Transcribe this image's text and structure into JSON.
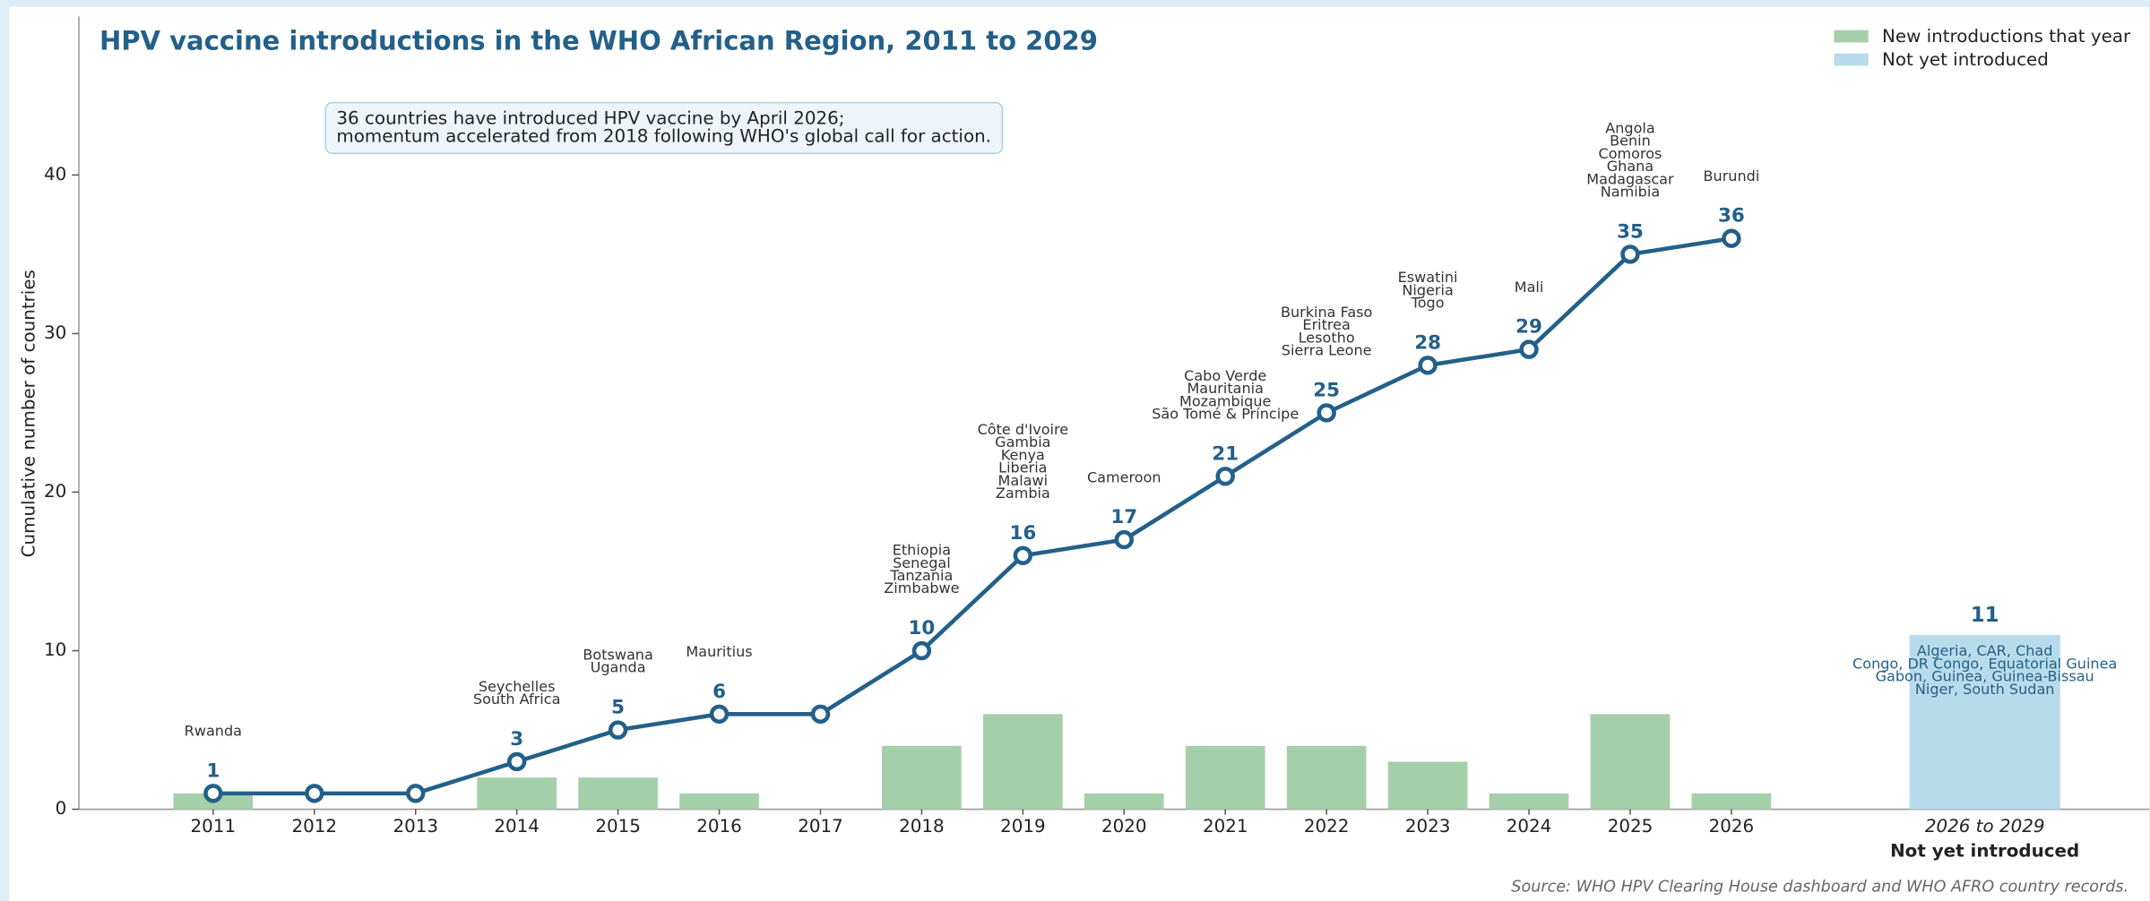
{
  "chart_data": {
    "type": "bar_line",
    "title": "HPV vaccine introductions in the WHO African Region, 2011 to 2029",
    "note": [
      "36 countries have introduced HPV vaccine by April 2026;",
      "momentum accelerated from 2018 following WHO's global call for action."
    ],
    "ylabel": "Cumulative number of countries",
    "source": "Source: WHO HPV Clearing House dashboard and WHO AFRO country records.",
    "categories": [
      "2011",
      "2012",
      "2013",
      "2014",
      "2015",
      "2016",
      "2017",
      "2018",
      "2019",
      "2020",
      "2021",
      "2022",
      "2023",
      "2024",
      "2025",
      "2026"
    ],
    "ylim": [
      0,
      50
    ],
    "yticks": [
      0,
      10,
      20,
      30,
      40
    ],
    "legend": "upper right",
    "series": [
      {
        "name": "New introductions that year",
        "color": "#a5cfa9",
        "values": [
          1,
          0,
          0,
          2,
          2,
          1,
          0,
          4,
          6,
          1,
          4,
          4,
          3,
          1,
          6,
          1
        ]
      },
      {
        "color": "#236089",
        "values": [
          1,
          1,
          1,
          3,
          5,
          6,
          6,
          10,
          16,
          17,
          21,
          25,
          28,
          29,
          35,
          36
        ],
        "countries": [
          [
            "Rwanda"
          ],
          null,
          null,
          [
            "Seychelles",
            "South Africa"
          ],
          [
            "Botswana",
            "Uganda"
          ],
          [
            "Mauritius"
          ],
          null,
          [
            "Ethiopia",
            "Senegal",
            "Tanzania",
            "Zimbabwe"
          ],
          [
            "Côte d'Ivoire",
            "Gambia",
            "Kenya",
            "Liberia",
            "Malawi",
            "Zambia"
          ],
          [
            "Cameroon"
          ],
          [
            "Cabo Verde",
            "Mauritania",
            "Mozambique",
            "São Tomé & Príncipe"
          ],
          [
            "Burkina Faso",
            "Eritrea",
            "Lesotho",
            "Sierra Leone"
          ],
          [
            "Eswatini",
            "Nigeria",
            "Togo"
          ],
          [
            "Mali"
          ],
          [
            "Angola",
            "Benin",
            "Comoros",
            "Ghana",
            "Madagascar",
            "Namibia"
          ],
          [
            "Burundi"
          ]
        ]
      }
    ],
    "not_yet": {
      "name": "Not yet introduced",
      "category": "2026 to 2029",
      "value": 11,
      "color": "#b8dbeb",
      "countries": [
        "Algeria, CAR, Chad",
        "Congo, DR Congo, Equatorial Guinea",
        "Gabon, Guinea, Guinea-Bissau",
        "Niger, South Sudan"
      ]
    }
  }
}
